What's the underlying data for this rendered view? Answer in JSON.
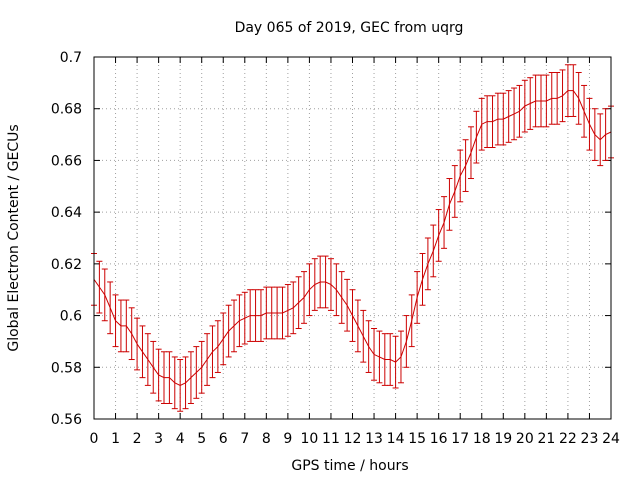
{
  "chart_data": {
    "type": "line",
    "title": "Day 065 of 2019, GEC from uqrg",
    "xlabel": "GPS time / hours",
    "ylabel": "Global Electron Content / GECUs",
    "xlim": [
      0,
      24
    ],
    "ylim": [
      0.56,
      0.7
    ],
    "x_ticks": [
      "0",
      "1",
      "2",
      "3",
      "4",
      "5",
      "6",
      "7",
      "8",
      "9",
      "10",
      "11",
      "12",
      "13",
      "14",
      "15",
      "16",
      "17",
      "18",
      "19",
      "20",
      "21",
      "22",
      "23",
      "24"
    ],
    "y_ticks": [
      "0.56",
      "0.58",
      "0.6",
      "0.62",
      "0.64",
      "0.66",
      "0.68",
      "0.7"
    ],
    "grid": true,
    "color": "#cc0000",
    "series": [
      {
        "error": 0.01,
        "points": [
          [
            0.0,
            0.614
          ],
          [
            0.25,
            0.611
          ],
          [
            0.5,
            0.608
          ],
          [
            0.75,
            0.603
          ],
          [
            1.0,
            0.598
          ],
          [
            1.25,
            0.596
          ],
          [
            1.5,
            0.596
          ],
          [
            1.75,
            0.593
          ],
          [
            2.0,
            0.589
          ],
          [
            2.25,
            0.586
          ],
          [
            2.5,
            0.583
          ],
          [
            2.75,
            0.58
          ],
          [
            3.0,
            0.577
          ],
          [
            3.25,
            0.576
          ],
          [
            3.5,
            0.576
          ],
          [
            3.75,
            0.574
          ],
          [
            4.0,
            0.573
          ],
          [
            4.25,
            0.574
          ],
          [
            4.5,
            0.576
          ],
          [
            4.75,
            0.578
          ],
          [
            5.0,
            0.58
          ],
          [
            5.25,
            0.583
          ],
          [
            5.5,
            0.586
          ],
          [
            5.75,
            0.588
          ],
          [
            6.0,
            0.591
          ],
          [
            6.25,
            0.594
          ],
          [
            6.5,
            0.596
          ],
          [
            6.75,
            0.598
          ],
          [
            7.0,
            0.599
          ],
          [
            7.25,
            0.6
          ],
          [
            7.5,
            0.6
          ],
          [
            7.75,
            0.6
          ],
          [
            8.0,
            0.601
          ],
          [
            8.25,
            0.601
          ],
          [
            8.5,
            0.601
          ],
          [
            8.75,
            0.601
          ],
          [
            9.0,
            0.602
          ],
          [
            9.25,
            0.603
          ],
          [
            9.5,
            0.605
          ],
          [
            9.75,
            0.607
          ],
          [
            10.0,
            0.61
          ],
          [
            10.25,
            0.612
          ],
          [
            10.5,
            0.613
          ],
          [
            10.75,
            0.613
          ],
          [
            11.0,
            0.612
          ],
          [
            11.25,
            0.61
          ],
          [
            11.5,
            0.607
          ],
          [
            11.75,
            0.604
          ],
          [
            12.0,
            0.6
          ],
          [
            12.25,
            0.596
          ],
          [
            12.5,
            0.592
          ],
          [
            12.75,
            0.588
          ],
          [
            13.0,
            0.585
          ],
          [
            13.25,
            0.584
          ],
          [
            13.5,
            0.583
          ],
          [
            13.75,
            0.583
          ],
          [
            14.0,
            0.582
          ],
          [
            14.25,
            0.584
          ],
          [
            14.5,
            0.59
          ],
          [
            14.75,
            0.598
          ],
          [
            15.0,
            0.607
          ],
          [
            15.25,
            0.614
          ],
          [
            15.5,
            0.62
          ],
          [
            15.75,
            0.625
          ],
          [
            16.0,
            0.631
          ],
          [
            16.25,
            0.636
          ],
          [
            16.5,
            0.643
          ],
          [
            16.75,
            0.648
          ],
          [
            17.0,
            0.654
          ],
          [
            17.25,
            0.658
          ],
          [
            17.5,
            0.663
          ],
          [
            17.75,
            0.669
          ],
          [
            18.0,
            0.674
          ],
          [
            18.25,
            0.675
          ],
          [
            18.5,
            0.675
          ],
          [
            18.75,
            0.676
          ],
          [
            19.0,
            0.676
          ],
          [
            19.25,
            0.677
          ],
          [
            19.5,
            0.678
          ],
          [
            19.75,
            0.679
          ],
          [
            20.0,
            0.681
          ],
          [
            20.25,
            0.682
          ],
          [
            20.5,
            0.683
          ],
          [
            20.75,
            0.683
          ],
          [
            21.0,
            0.683
          ],
          [
            21.25,
            0.684
          ],
          [
            21.5,
            0.684
          ],
          [
            21.75,
            0.685
          ],
          [
            22.0,
            0.687
          ],
          [
            22.25,
            0.687
          ],
          [
            22.5,
            0.684
          ],
          [
            22.75,
            0.679
          ],
          [
            23.0,
            0.674
          ],
          [
            23.25,
            0.67
          ],
          [
            23.5,
            0.668
          ],
          [
            23.75,
            0.67
          ],
          [
            24.0,
            0.671
          ]
        ]
      }
    ]
  }
}
